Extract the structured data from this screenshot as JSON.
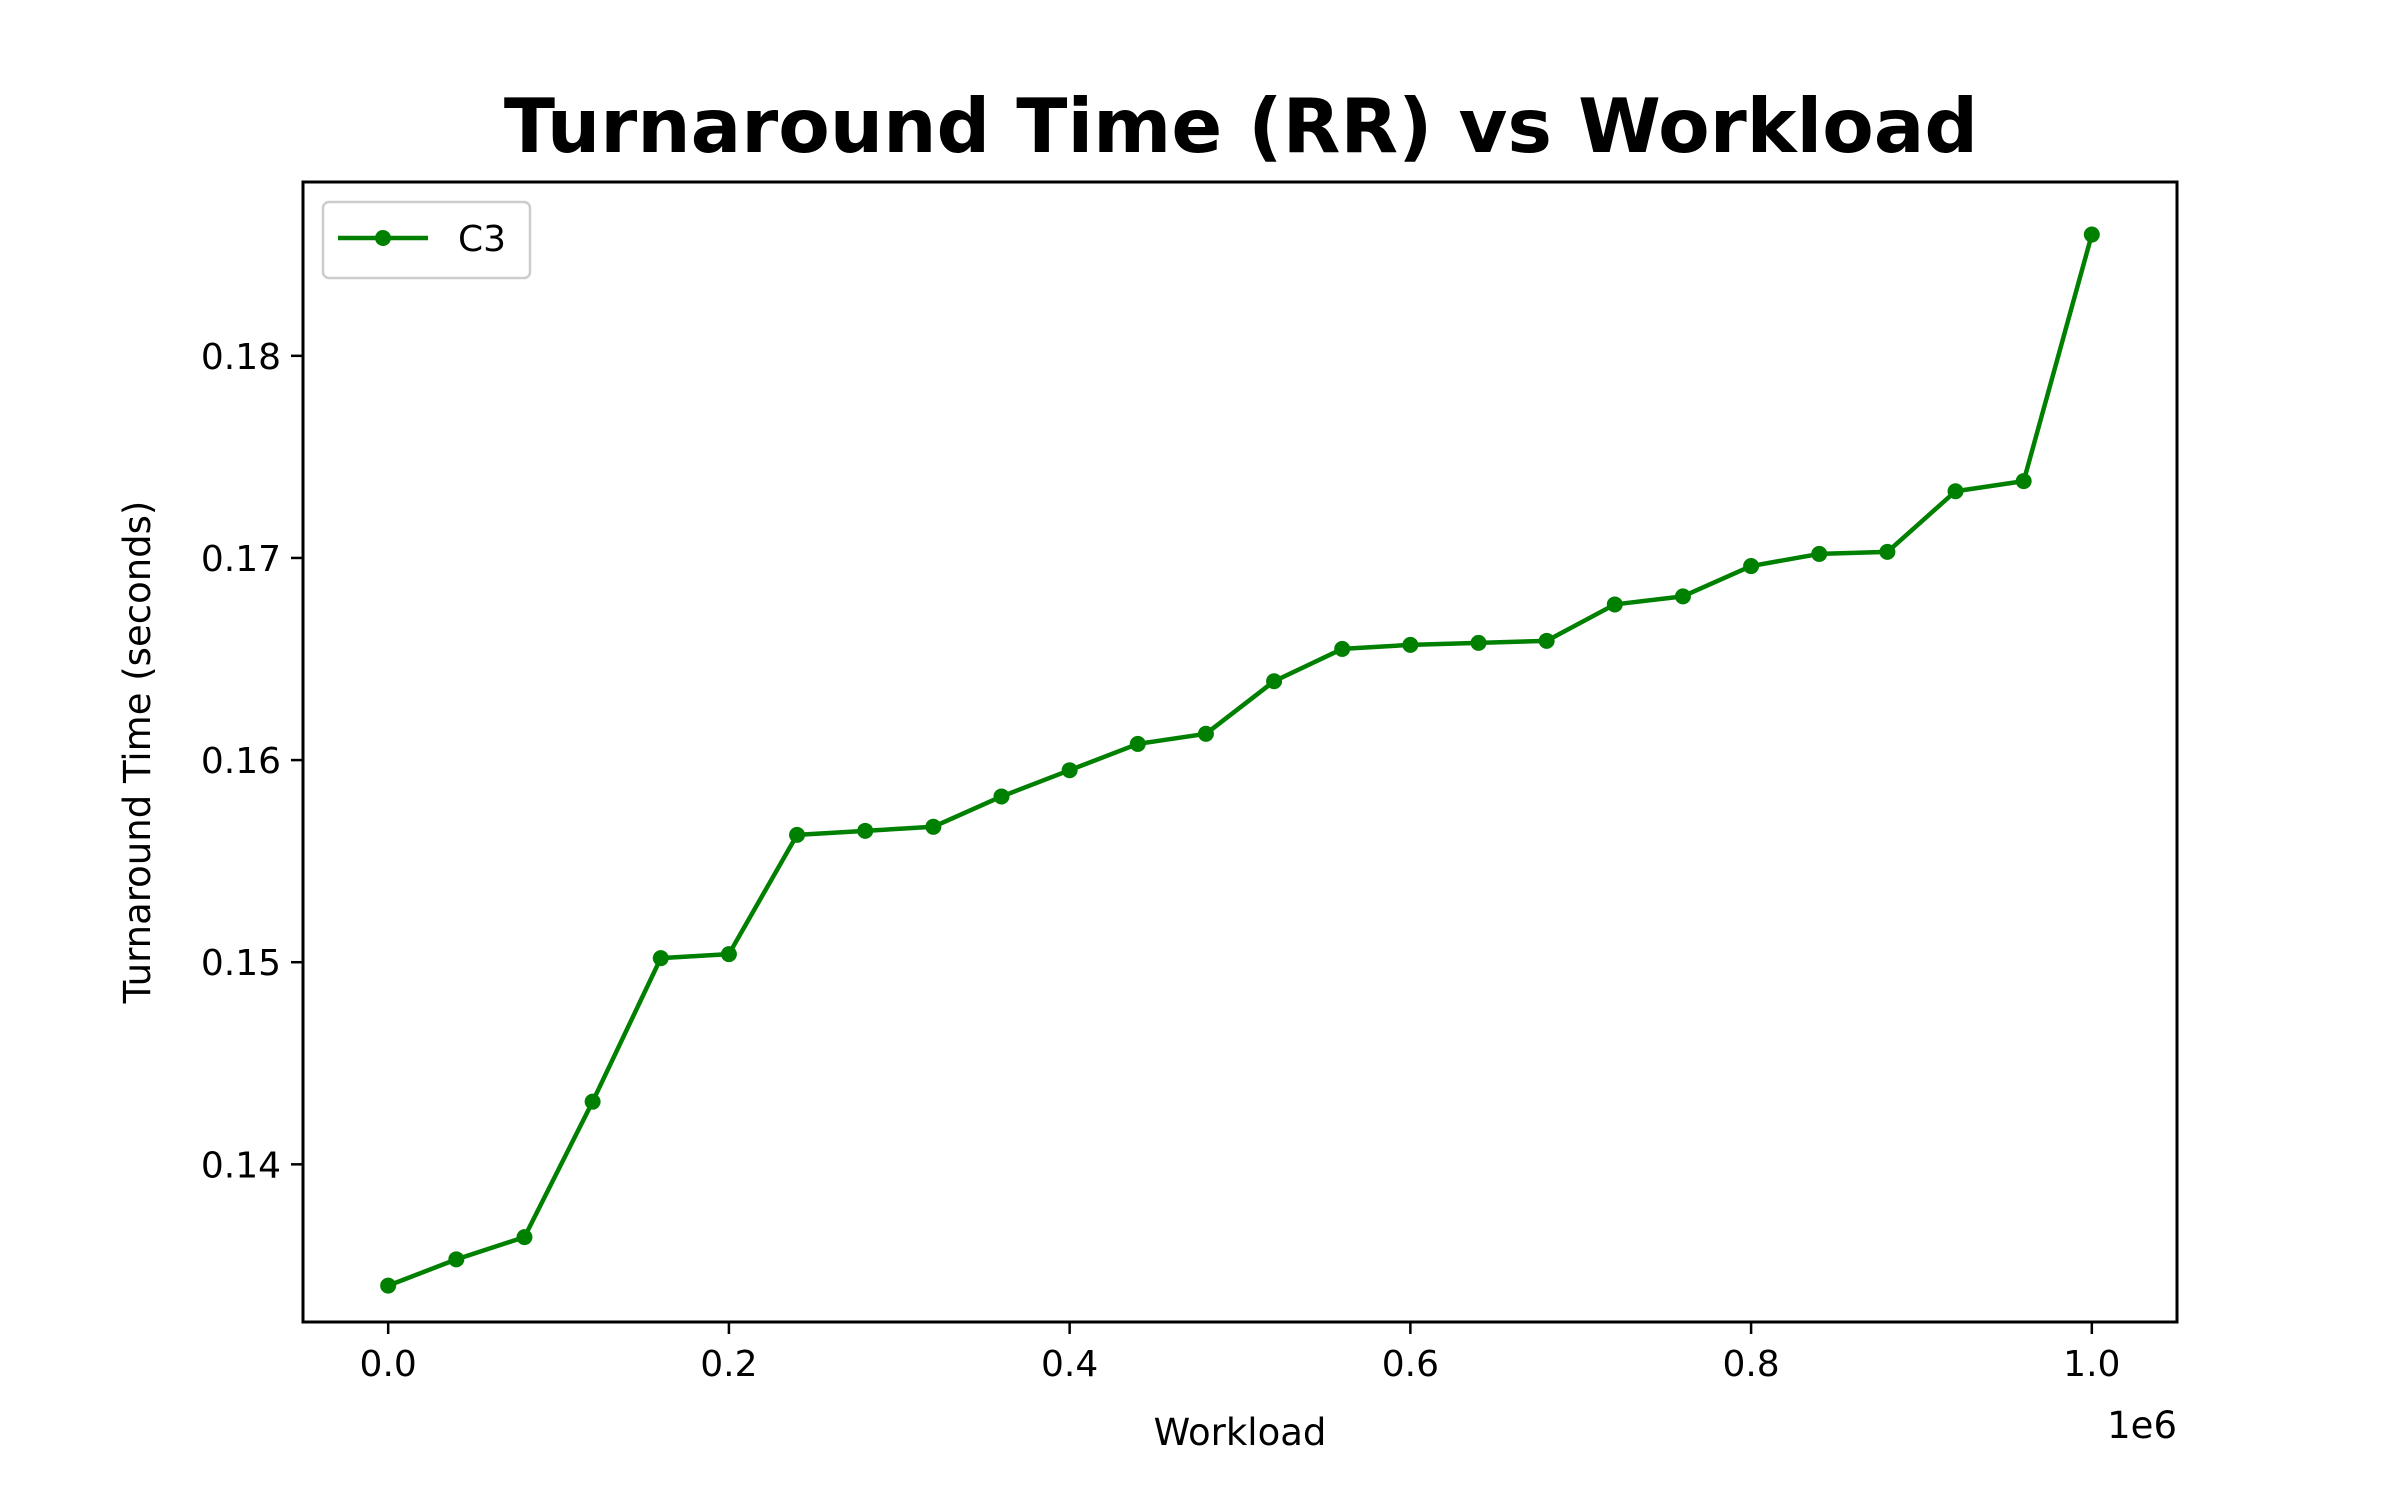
{
  "chart_data": {
    "type": "line",
    "title": "Turnaround Time (RR) vs Workload",
    "xlabel": "Workload",
    "ylabel": "Turnaround Time (seconds)",
    "x_offset_label": "1e6",
    "xlim": [
      -0.05,
      1.05
    ],
    "ylim": [
      0.1322,
      0.1886
    ],
    "xticks": [
      0.0,
      0.2,
      0.4,
      0.6,
      0.8,
      1.0
    ],
    "xtick_labels": [
      "0.0",
      "0.2",
      "0.4",
      "0.6",
      "0.8",
      "1.0"
    ],
    "yticks": [
      0.14,
      0.15,
      0.16,
      0.17,
      0.18
    ],
    "ytick_labels": [
      "0.14",
      "0.15",
      "0.16",
      "0.17",
      "0.18"
    ],
    "grid": false,
    "legend_position": "top-left",
    "series": [
      {
        "name": "C3",
        "color": "#008000",
        "marker": "circle",
        "x": [
          0.0,
          0.04,
          0.08,
          0.12,
          0.16,
          0.2,
          0.24,
          0.28,
          0.32,
          0.36,
          0.4,
          0.44,
          0.48,
          0.52,
          0.56,
          0.6,
          0.64,
          0.68,
          0.72,
          0.76,
          0.8,
          0.84,
          0.88,
          0.92,
          0.96,
          1.0
        ],
        "y": [
          0.134,
          0.1353,
          0.1364,
          0.1431,
          0.1502,
          0.1504,
          0.1563,
          0.1565,
          0.1567,
          0.1582,
          0.1595,
          0.1608,
          0.1613,
          0.1639,
          0.1655,
          0.1657,
          0.1658,
          0.1659,
          0.1677,
          0.1681,
          0.1696,
          0.1702,
          0.1703,
          0.1733,
          0.1738,
          0.186
        ]
      }
    ]
  }
}
